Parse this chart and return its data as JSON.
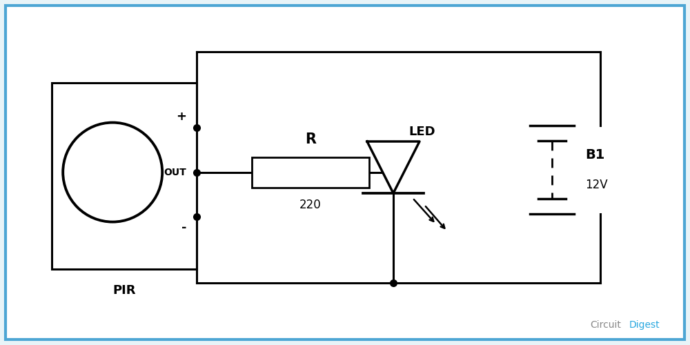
{
  "bg_color": "#e8f4f8",
  "inner_bg": "#ffffff",
  "line_color": "#000000",
  "border_color": "#4da6d4",
  "pir_label": "PIR",
  "resistor_label": "R",
  "resistor_value": "220",
  "battery_label": "B1",
  "battery_value": "12V",
  "led_label": "LED",
  "circuit_color": "#888888",
  "digest_color": "#29a8e0"
}
